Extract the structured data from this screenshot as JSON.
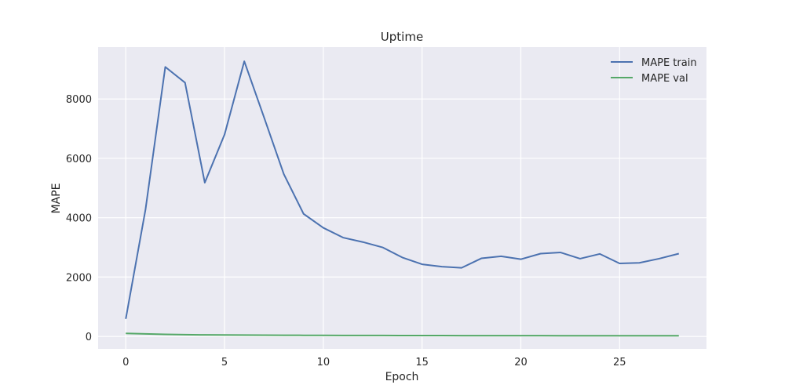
{
  "chart_data": {
    "type": "line",
    "title": "Uptime",
    "xlabel": "Epoch",
    "ylabel": "MAPE",
    "xlim": [
      -1.4,
      29.4
    ],
    "ylim": [
      -420,
      9750
    ],
    "xticks": [
      0,
      5,
      10,
      15,
      20,
      25
    ],
    "yticks": [
      0,
      2000,
      4000,
      6000,
      8000
    ],
    "grid": true,
    "legend_position": "top-right",
    "x": [
      0,
      1,
      2,
      3,
      4,
      5,
      6,
      7,
      8,
      9,
      10,
      11,
      12,
      13,
      14,
      15,
      16,
      17,
      18,
      19,
      20,
      21,
      22,
      23,
      24,
      25,
      26,
      27,
      28
    ],
    "series": [
      {
        "name": "MAPE train",
        "color": "#4c72b0",
        "values": [
          590,
          4280,
          9080,
          8550,
          5180,
          6800,
          9270,
          7380,
          5470,
          4130,
          3660,
          3330,
          3180,
          3000,
          2660,
          2430,
          2350,
          2310,
          2630,
          2700,
          2600,
          2790,
          2830,
          2620,
          2780,
          2460,
          2480,
          2620,
          2790
        ]
      },
      {
        "name": "MAPE val",
        "color": "#55a868",
        "values": [
          100,
          85,
          70,
          58,
          52,
          48,
          45,
          42,
          40,
          37,
          35,
          33,
          32,
          31,
          30,
          29,
          28,
          27,
          26,
          26,
          25,
          25,
          24,
          24,
          23,
          22,
          22,
          22,
          22
        ]
      }
    ]
  }
}
